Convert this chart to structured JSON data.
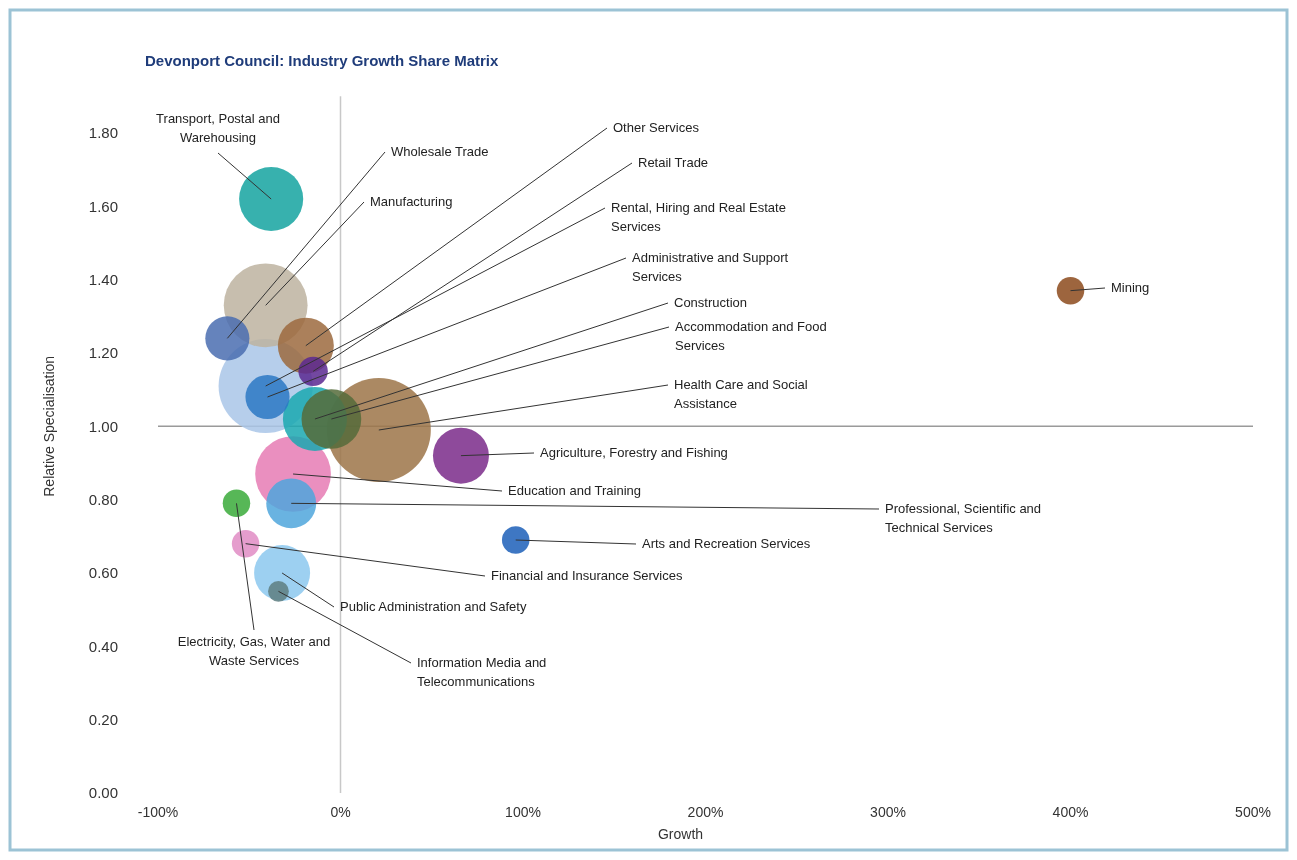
{
  "chart_data": {
    "type": "bubble",
    "title": "Devonport Council: Industry Growth Share Matrix",
    "xlabel": "Growth",
    "ylabel": "Relative Specialisation",
    "xlim": [
      -100,
      500
    ],
    "xticks": [
      {
        "value": -100,
        "label": "-100%"
      },
      {
        "value": 0,
        "label": "0%"
      },
      {
        "value": 100,
        "label": "100%"
      },
      {
        "value": 200,
        "label": "200%"
      },
      {
        "value": 300,
        "label": "300%"
      },
      {
        "value": 400,
        "label": "400%"
      },
      {
        "value": 500,
        "label": "500%"
      }
    ],
    "ylim": [
      0,
      1.9
    ],
    "yticks": [
      {
        "value": 0,
        "label": "0.00"
      },
      {
        "value": 0.2,
        "label": "0.20"
      },
      {
        "value": 0.4,
        "label": "0.40"
      },
      {
        "value": 0.6,
        "label": "0.60"
      },
      {
        "value": 0.8,
        "label": "0.80"
      },
      {
        "value": 1,
        "label": "1.00"
      },
      {
        "value": 1.2,
        "label": "1.20"
      },
      {
        "value": 1.4,
        "label": "1.40"
      },
      {
        "value": 1.6,
        "label": "1.60"
      },
      {
        "value": 1.8,
        "label": "1.80"
      }
    ],
    "grid": false,
    "ref_lines": [
      {
        "axis": "y",
        "value": 1,
        "color": "#9a9a9a"
      },
      {
        "axis": "x",
        "value": 0,
        "color": "#c8c8c8"
      }
    ],
    "series": [
      {
        "name": "Health Care and Social Assistance",
        "color": "#9c7448",
        "x": [
          21
        ],
        "values": [
          0.99
        ],
        "sizes": [
          1
        ]
      },
      {
        "name": "Rental, Hiring and Real Estate Services",
        "color": "#a9c6e8",
        "x": [
          -41
        ],
        "values": [
          1.11
        ],
        "sizes": [
          0.82
        ]
      },
      {
        "name": "Manufacturing",
        "color": "#bdb3a0",
        "x": [
          -41
        ],
        "values": [
          1.33
        ],
        "sizes": [
          0.65
        ]
      },
      {
        "name": "Education and Training",
        "color": "#e67bb4",
        "x": [
          -26
        ],
        "values": [
          0.87
        ],
        "sizes": [
          0.53
        ]
      },
      {
        "name": "Transport, Postal and Warehousing",
        "color": "#14a3a0",
        "x": [
          -38
        ],
        "values": [
          1.62
        ],
        "sizes": [
          0.38
        ]
      },
      {
        "name": "Construction",
        "color": "#1aa8b0",
        "x": [
          -14
        ],
        "values": [
          1.02
        ],
        "sizes": [
          0.38
        ]
      },
      {
        "name": "Accommodation and Food Services",
        "color": "#556b3a",
        "x": [
          -5
        ],
        "values": [
          1.02
        ],
        "sizes": [
          0.33
        ]
      },
      {
        "name": "Other Services",
        "color": "#9c6a3e",
        "x": [
          -19
        ],
        "values": [
          1.22
        ],
        "sizes": [
          0.29
        ]
      },
      {
        "name": "Agriculture, Forestry and Fishing",
        "color": "#7a2a8a",
        "x": [
          66
        ],
        "values": [
          0.92
        ],
        "sizes": [
          0.29
        ]
      },
      {
        "name": "Public Administration and Safety",
        "color": "#8cc8ee",
        "x": [
          -32
        ],
        "values": [
          0.6
        ],
        "sizes": [
          0.29
        ]
      },
      {
        "name": "Professional, Scientific and Technical Services",
        "color": "#4fa6dc",
        "x": [
          -27
        ],
        "values": [
          0.79
        ],
        "sizes": [
          0.23
        ]
      },
      {
        "name": "Wholesale Trade",
        "color": "#4a6db0",
        "x": [
          -62
        ],
        "values": [
          1.24
        ],
        "sizes": [
          0.18
        ]
      },
      {
        "name": "Administrative and Support Services",
        "color": "#2c78c4",
        "x": [
          -40
        ],
        "values": [
          1.08
        ],
        "sizes": [
          0.18
        ]
      },
      {
        "name": "Retail Trade",
        "color": "#5a2890",
        "x": [
          -15
        ],
        "values": [
          1.15
        ],
        "sizes": [
          0.08
        ]
      },
      {
        "name": "Arts and Recreation Services",
        "color": "#1c5fb8",
        "x": [
          96
        ],
        "values": [
          0.69
        ],
        "sizes": [
          0.07
        ]
      },
      {
        "name": "Electricity, Gas, Water and Waste Services",
        "color": "#3aaa3a",
        "x": [
          -57
        ],
        "values": [
          0.79
        ],
        "sizes": [
          0.07
        ]
      },
      {
        "name": "Financial and Insurance Services",
        "color": "#e08cc4",
        "x": [
          -52
        ],
        "values": [
          0.68
        ],
        "sizes": [
          0.07
        ]
      },
      {
        "name": "Mining",
        "color": "#8c4a1c",
        "x": [
          400
        ],
        "values": [
          1.37
        ],
        "sizes": [
          0.07
        ]
      },
      {
        "name": "Information Media and Telecommunications",
        "color": "#5e7e80",
        "x": [
          -34
        ],
        "values": [
          0.55
        ],
        "sizes": [
          0.04
        ]
      }
    ]
  }
}
